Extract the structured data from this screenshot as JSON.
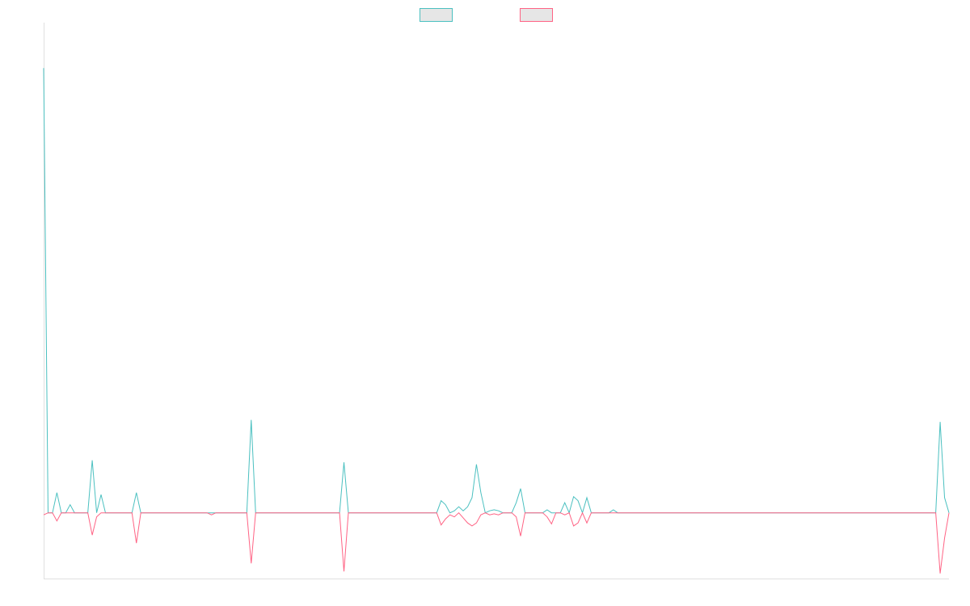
{
  "chart_data": {
    "type": "line",
    "title": "",
    "xlabel": "",
    "ylabel": "",
    "legend_position": "top-center",
    "grid": false,
    "x_count": 204,
    "ylim": [
      -0.65,
      4.85
    ],
    "series": [
      {
        "name": "",
        "color": "#4bc0c0",
        "legend_fill": "#e6e6e6",
        "points": [
          [
            0,
            4.4
          ],
          [
            1,
            0.0
          ],
          [
            2,
            0.0
          ],
          [
            3,
            0.2
          ],
          [
            4,
            0.0
          ],
          [
            5,
            0.0
          ],
          [
            6,
            0.08
          ],
          [
            7,
            0.0
          ],
          [
            8,
            0.0
          ],
          [
            9,
            0.0
          ],
          [
            10,
            0.0
          ],
          [
            11,
            0.52
          ],
          [
            12,
            0.0
          ],
          [
            13,
            0.18
          ],
          [
            14,
            0.0
          ],
          [
            15,
            0.0
          ],
          [
            16,
            0.0
          ],
          [
            17,
            0.0
          ],
          [
            18,
            0.0
          ],
          [
            19,
            0.0
          ],
          [
            20,
            0.0
          ],
          [
            21,
            0.2
          ],
          [
            22,
            0.0
          ],
          [
            40,
            0.0
          ],
          [
            41,
            0.0
          ],
          [
            42,
            0.0
          ],
          [
            43,
            0.0
          ],
          [
            44,
            0.0
          ],
          [
            45,
            0.0
          ],
          [
            46,
            0.0
          ],
          [
            47,
            0.92
          ],
          [
            48,
            0.0
          ],
          [
            67,
            0.0
          ],
          [
            68,
            0.5
          ],
          [
            69,
            0.0
          ],
          [
            89,
            0.0
          ],
          [
            90,
            0.12
          ],
          [
            91,
            0.08
          ],
          [
            92,
            0.0
          ],
          [
            93,
            0.02
          ],
          [
            94,
            0.06
          ],
          [
            95,
            0.02
          ],
          [
            96,
            0.06
          ],
          [
            97,
            0.15
          ],
          [
            98,
            0.48
          ],
          [
            99,
            0.2
          ],
          [
            100,
            0.0
          ],
          [
            101,
            0.02
          ],
          [
            102,
            0.03
          ],
          [
            103,
            0.02
          ],
          [
            104,
            0.0
          ],
          [
            105,
            0.0
          ],
          [
            106,
            0.0
          ],
          [
            107,
            0.1
          ],
          [
            108,
            0.24
          ],
          [
            109,
            0.0
          ],
          [
            113,
            0.0
          ],
          [
            114,
            0.03
          ],
          [
            115,
            0.0
          ],
          [
            116,
            0.0
          ],
          [
            117,
            0.0
          ],
          [
            118,
            0.1
          ],
          [
            119,
            0.0
          ],
          [
            120,
            0.16
          ],
          [
            121,
            0.12
          ],
          [
            122,
            0.0
          ],
          [
            123,
            0.15
          ],
          [
            124,
            0.0
          ],
          [
            128,
            0.0
          ],
          [
            129,
            0.03
          ],
          [
            130,
            0.0
          ],
          [
            202,
            0.0
          ],
          [
            203,
            0.9
          ],
          [
            204,
            0.15
          ],
          [
            205,
            0.0
          ]
        ]
      },
      {
        "name": "",
        "color": "#ff6384",
        "legend_fill": "#e6e6e6",
        "points": [
          [
            0,
            -0.02
          ],
          [
            1,
            0.0
          ],
          [
            2,
            0.0
          ],
          [
            3,
            -0.08
          ],
          [
            4,
            0.0
          ],
          [
            5,
            0.0
          ],
          [
            6,
            0.0
          ],
          [
            10,
            0.0
          ],
          [
            11,
            -0.22
          ],
          [
            12,
            -0.04
          ],
          [
            13,
            0.0
          ],
          [
            20,
            0.0
          ],
          [
            21,
            -0.3
          ],
          [
            22,
            0.0
          ],
          [
            37,
            0.0
          ],
          [
            38,
            -0.02
          ],
          [
            39,
            0.0
          ],
          [
            46,
            0.0
          ],
          [
            47,
            -0.5
          ],
          [
            48,
            0.0
          ],
          [
            67,
            0.0
          ],
          [
            68,
            -0.58
          ],
          [
            69,
            0.0
          ],
          [
            89,
            0.0
          ],
          [
            90,
            -0.12
          ],
          [
            91,
            -0.06
          ],
          [
            92,
            -0.02
          ],
          [
            93,
            -0.04
          ],
          [
            94,
            0.0
          ],
          [
            95,
            -0.05
          ],
          [
            96,
            -0.1
          ],
          [
            97,
            -0.13
          ],
          [
            98,
            -0.1
          ],
          [
            99,
            -0.02
          ],
          [
            100,
            0.0
          ],
          [
            101,
            -0.02
          ],
          [
            102,
            -0.01
          ],
          [
            103,
            -0.02
          ],
          [
            104,
            0.0
          ],
          [
            105,
            0.0
          ],
          [
            106,
            0.0
          ],
          [
            107,
            -0.04
          ],
          [
            108,
            -0.23
          ],
          [
            109,
            0.0
          ],
          [
            113,
            0.0
          ],
          [
            114,
            -0.04
          ],
          [
            115,
            -0.11
          ],
          [
            116,
            0.0
          ],
          [
            117,
            0.0
          ],
          [
            118,
            -0.02
          ],
          [
            119,
            0.0
          ],
          [
            120,
            -0.13
          ],
          [
            121,
            -0.1
          ],
          [
            122,
            0.0
          ],
          [
            123,
            -0.1
          ],
          [
            124,
            0.0
          ],
          [
            202,
            0.0
          ],
          [
            203,
            -0.6
          ],
          [
            204,
            -0.25
          ],
          [
            205,
            0.0
          ]
        ]
      }
    ]
  }
}
